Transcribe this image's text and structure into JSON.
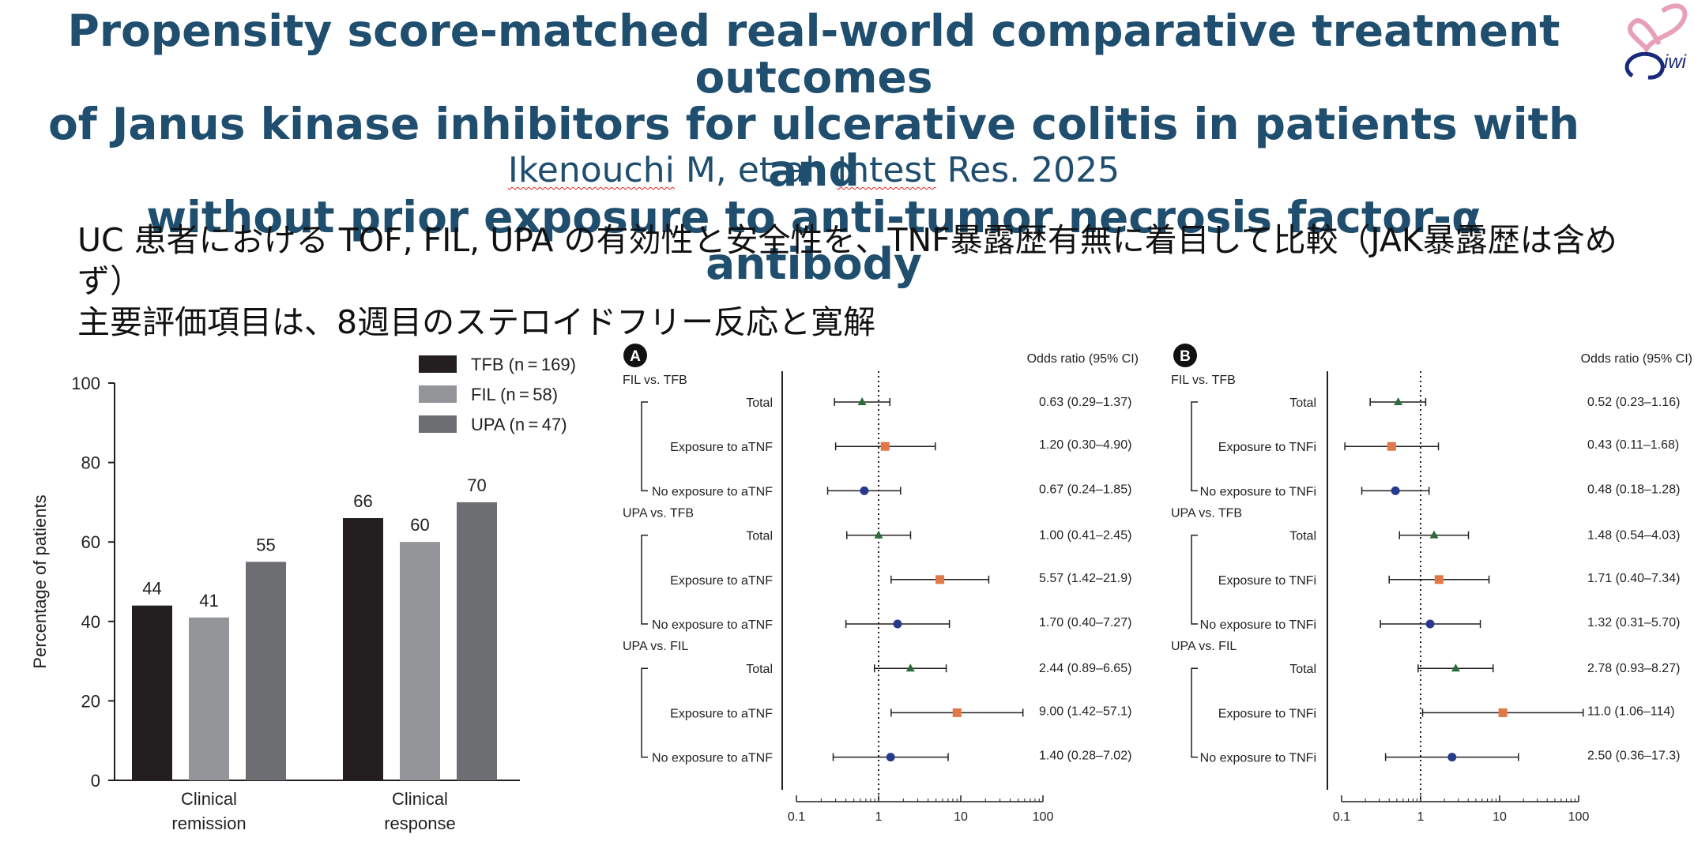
{
  "slide": {
    "title_lines": [
      "Propensity score-matched real-world comparative treatment outcomes",
      "of Janus kinase inhibitors for ulcerative colitis in patients with and",
      "without prior exposure to anti-tumor necrosis factor-α antibody"
    ],
    "citation": {
      "author": "Ikenouchi",
      "mid": " M, et al. ",
      "journal": "Intest",
      "rest": " Res. 2025"
    },
    "summary_lines": [
      "UC 患者における TOF, FIL, UPA の有効性と安全性を、TNF暴露歴有無に着目して比較（JAK暴露歴は含めず）",
      "主要評価項目は、8週目のステロイドフリー反応と寛解"
    ],
    "logo_text": "iwi",
    "logo_colors": {
      "pink": "#e8a0b8",
      "navy": "#1a2a7a"
    }
  },
  "chart_data": [
    {
      "type": "bar",
      "ylabel": "Percentage of patients",
      "ylim": [
        0,
        100
      ],
      "yticks": [
        0,
        20,
        40,
        60,
        80,
        100
      ],
      "categories": [
        [
          "Clinical",
          "remission"
        ],
        [
          "Clinical",
          "response"
        ]
      ],
      "series": [
        {
          "name": "TFB (n = 169)",
          "values": [
            44,
            66
          ],
          "color": "#231f20"
        },
        {
          "name": "FIL (n = 58)",
          "values": [
            41,
            60
          ],
          "color": "#939598"
        },
        {
          "name": "UPA (n = 47)",
          "values": [
            55,
            70
          ],
          "color": "#6d6e71"
        }
      ],
      "legend_position": "top-right"
    },
    {
      "type": "forest",
      "panel": "A",
      "header": "Odds ratio (95% CI)",
      "xscale": "log",
      "xlim": [
        0.1,
        100
      ],
      "xticks": [
        "0.1",
        "1",
        "10",
        "100"
      ],
      "reference": 1,
      "groups": [
        {
          "label": "FIL vs. TFB",
          "rows": [
            {
              "label": "Total",
              "or": 0.63,
              "lo": 0.29,
              "hi": 1.37,
              "text": "0.63 (0.29–1.37)",
              "marker": "triangle"
            },
            {
              "label": "Exposure to aTNF",
              "or": 1.2,
              "lo": 0.3,
              "hi": 4.9,
              "text": "1.20 (0.30–4.90)",
              "marker": "square"
            },
            {
              "label": "No exposure to aTNF",
              "or": 0.67,
              "lo": 0.24,
              "hi": 1.85,
              "text": "0.67 (0.24–1.85)",
              "marker": "circle"
            }
          ]
        },
        {
          "label": "UPA vs. TFB",
          "rows": [
            {
              "label": "Total",
              "or": 1.0,
              "lo": 0.41,
              "hi": 2.45,
              "text": "1.00 (0.41–2.45)",
              "marker": "triangle"
            },
            {
              "label": "Exposure to aTNF",
              "or": 5.57,
              "lo": 1.42,
              "hi": 21.9,
              "text": "5.57 (1.42–21.9)",
              "marker": "square"
            },
            {
              "label": "No exposure to aTNF",
              "or": 1.7,
              "lo": 0.4,
              "hi": 7.27,
              "text": "1.70 (0.40–7.27)",
              "marker": "circle"
            }
          ]
        },
        {
          "label": "UPA vs. FIL",
          "rows": [
            {
              "label": "Total",
              "or": 2.44,
              "lo": 0.89,
              "hi": 6.65,
              "text": "2.44 (0.89–6.65)",
              "marker": "triangle"
            },
            {
              "label": "Exposure to aTNF",
              "or": 9.0,
              "lo": 1.42,
              "hi": 57.1,
              "text": "9.00 (1.42–57.1)",
              "marker": "square"
            },
            {
              "label": "No exposure to aTNF",
              "or": 1.4,
              "lo": 0.28,
              "hi": 7.02,
              "text": "1.40 (0.28–7.02)",
              "marker": "circle"
            }
          ]
        }
      ]
    },
    {
      "type": "forest",
      "panel": "B",
      "header": "Odds ratio (95% CI)",
      "xscale": "log",
      "xlim": [
        0.1,
        100
      ],
      "xticks": [
        "0.1",
        "1",
        "10",
        "100"
      ],
      "reference": 1,
      "groups": [
        {
          "label": "FIL vs. TFB",
          "rows": [
            {
              "label": "Total",
              "or": 0.52,
              "lo": 0.23,
              "hi": 1.16,
              "text": "0.52 (0.23–1.16)",
              "marker": "triangle"
            },
            {
              "label": "Exposure to TNFi",
              "or": 0.43,
              "lo": 0.11,
              "hi": 1.68,
              "text": "0.43 (0.11–1.68)",
              "marker": "square"
            },
            {
              "label": "No exposure to TNFi",
              "or": 0.48,
              "lo": 0.18,
              "hi": 1.28,
              "text": "0.48 (0.18–1.28)",
              "marker": "circle"
            }
          ]
        },
        {
          "label": "UPA vs. TFB",
          "rows": [
            {
              "label": "Total",
              "or": 1.48,
              "lo": 0.54,
              "hi": 4.03,
              "text": "1.48 (0.54–4.03)",
              "marker": "triangle"
            },
            {
              "label": "Exposure to TNFi",
              "or": 1.71,
              "lo": 0.4,
              "hi": 7.34,
              "text": "1.71 (0.40–7.34)",
              "marker": "square"
            },
            {
              "label": "No exposure to TNFi",
              "or": 1.32,
              "lo": 0.31,
              "hi": 5.7,
              "text": "1.32 (0.31–5.70)",
              "marker": "circle"
            }
          ]
        },
        {
          "label": "UPA vs. FIL",
          "rows": [
            {
              "label": "Total",
              "or": 2.78,
              "lo": 0.93,
              "hi": 8.27,
              "text": "2.78 (0.93–8.27)",
              "marker": "triangle"
            },
            {
              "label": "Exposure to TNFi",
              "or": 11.0,
              "lo": 1.06,
              "hi": 114,
              "text": "11.0 (1.06–114)",
              "marker": "square"
            },
            {
              "label": "No exposure to TNFi",
              "or": 2.5,
              "lo": 0.36,
              "hi": 17.3,
              "text": "2.50 (0.36–17.3)",
              "marker": "circle"
            }
          ]
        }
      ]
    }
  ],
  "marker_colors": {
    "triangle": "#2e6b3a",
    "square": "#e07848",
    "circle": "#283a8c"
  }
}
